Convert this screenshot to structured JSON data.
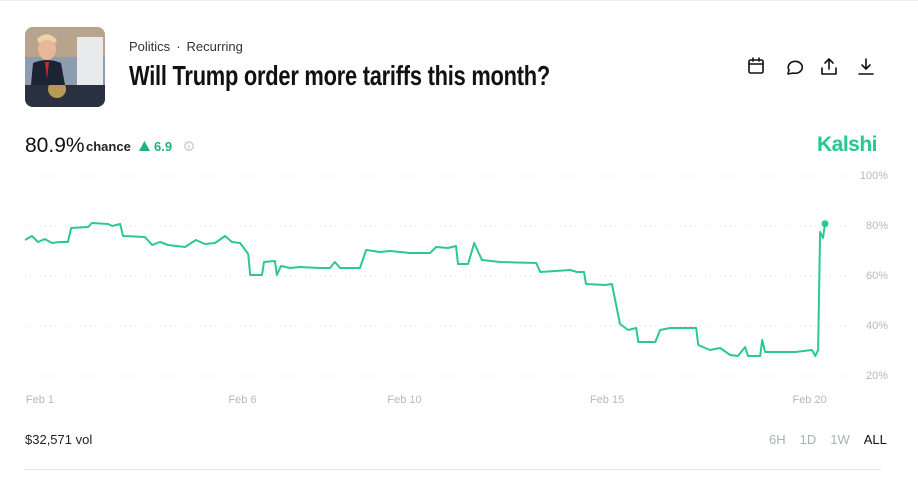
{
  "header": {
    "category": "Politics",
    "separator": "·",
    "tag": "Recurring",
    "title": "Will Trump order more tariffs this month?"
  },
  "summary": {
    "probability": "80.9%",
    "label": "chance",
    "change": "6.9",
    "brand": "Kalshi"
  },
  "chart_data": {
    "type": "line",
    "color": "#2bc98f",
    "grid": true,
    "x": [
      0.63,
      0.8,
      0.95,
      1.12,
      1.3,
      1.49,
      1.69,
      1.77,
      2.19,
      2.28,
      2.68,
      2.78,
      2.98,
      3.05,
      3.59,
      3.77,
      3.96,
      4.16,
      4.58,
      4.85,
      5.07,
      5.32,
      5.57,
      5.74,
      5.94,
      6.14,
      6.19,
      6.48,
      6.53,
      6.8,
      6.85,
      6.95,
      7.17,
      7.42,
      7.91,
      8.16,
      8.28,
      8.41,
      8.9,
      9.05,
      9.4,
      9.64,
      10.14,
      10.63,
      10.78,
      11.07,
      11.27,
      11.32,
      11.57,
      11.72,
      11.91,
      12.36,
      13.25,
      13.35,
      14.09,
      14.26,
      14.43,
      14.48,
      14.95,
      15.12,
      15.32,
      15.52,
      15.72,
      15.77,
      16.19,
      16.31,
      16.56,
      17.2,
      17.25,
      17.54,
      17.79,
      18.04,
      18.23,
      18.41,
      18.48,
      18.78,
      18.83,
      18.9,
      19.27,
      19.64,
      20.06,
      20.14,
      20.21,
      20.26,
      20.33,
      20.38
    ],
    "values": [
      74.4,
      76,
      73.6,
      74.8,
      73.2,
      73.6,
      73.6,
      79.2,
      79.6,
      81.2,
      80.8,
      80,
      80.8,
      76,
      75.6,
      72.4,
      73.6,
      72.4,
      71.6,
      74.4,
      72.8,
      73.2,
      76,
      73.6,
      73.2,
      68.8,
      60.4,
      60.4,
      65.6,
      66,
      60.4,
      64,
      63.2,
      63.6,
      63.2,
      63.2,
      65.6,
      63.2,
      63.2,
      70.4,
      69.6,
      70,
      69.2,
      69.2,
      71.6,
      71.2,
      72,
      64.8,
      64.8,
      73.2,
      66.4,
      65.6,
      65.2,
      61.6,
      62.4,
      61.6,
      61.6,
      56.8,
      56.4,
      56.8,
      40.8,
      38.4,
      39.2,
      33.6,
      33.6,
      38.4,
      39.2,
      39.2,
      32.4,
      30.4,
      31.2,
      28.4,
      28,
      31.6,
      28,
      28,
      34.4,
      29.6,
      29.6,
      29.6,
      30.4,
      28,
      30.4,
      77.6,
      75.2,
      80.9
    ],
    "xlim": [
      0.63,
      20.38
    ],
    "xticks": [
      {
        "value": 1,
        "label": "Feb 1"
      },
      {
        "value": 6,
        "label": "Feb 6"
      },
      {
        "value": 10,
        "label": "Feb 10"
      },
      {
        "value": 15,
        "label": "Feb 15"
      },
      {
        "value": 20,
        "label": "Feb 20"
      }
    ],
    "ylim": [
      20,
      100
    ],
    "yticks": [
      {
        "value": 20,
        "label": "20%"
      },
      {
        "value": 40,
        "label": "40%"
      },
      {
        "value": 60,
        "label": "60%"
      },
      {
        "value": 80,
        "label": "80%"
      },
      {
        "value": 100,
        "label": "100%"
      }
    ]
  },
  "footer": {
    "volume": "$32,571 vol",
    "ranges": [
      "6H",
      "1D",
      "1W",
      "ALL"
    ],
    "active_range": 3
  }
}
